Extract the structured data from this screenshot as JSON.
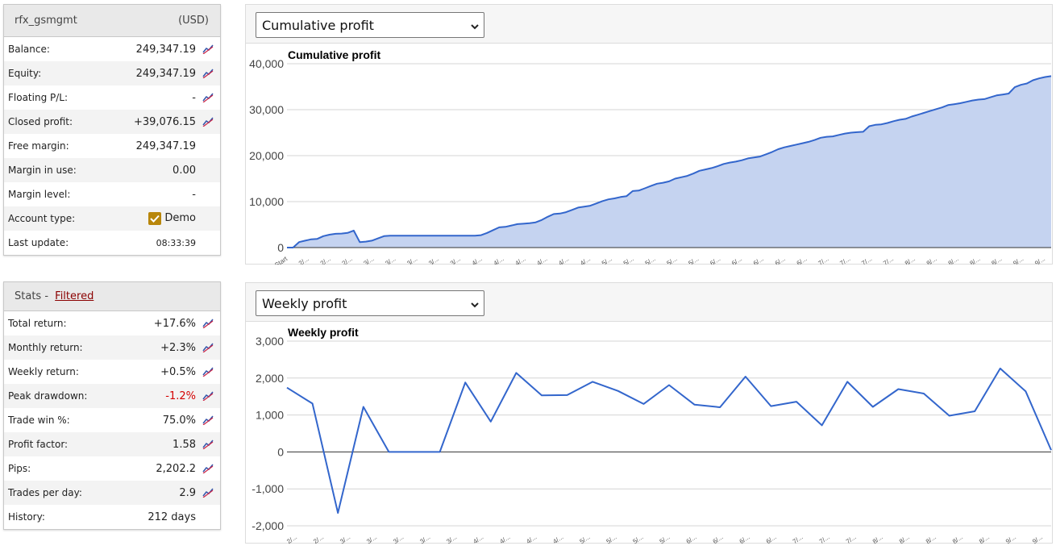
{
  "account": {
    "name": "rfx_gsmgmt",
    "currency": "(USD)",
    "rows": [
      {
        "label": "Balance:",
        "value": "249,347.19",
        "chart_icon": true
      },
      {
        "label": "Equity:",
        "value": "249,347.19",
        "chart_icon": true
      },
      {
        "label": "Floating P/L:",
        "value": "-",
        "chart_icon": true
      },
      {
        "label": "Closed profit:",
        "value": "+39,076.15",
        "chart_icon": true
      },
      {
        "label": "Free margin:",
        "value": "249,347.19",
        "chart_icon": false
      },
      {
        "label": "Margin in use:",
        "value": "0.00",
        "chart_icon": false
      },
      {
        "label": "Margin level:",
        "value": "-",
        "chart_icon": false
      },
      {
        "label": "Account type:",
        "value": "Demo",
        "checkbox": true,
        "chart_icon": false
      },
      {
        "label": "Last update:",
        "value": "08:33:39",
        "chart_icon": false
      }
    ]
  },
  "stats": {
    "title": "Stats - ",
    "filter_link": "Filtered",
    "rows": [
      {
        "label": "Total return:",
        "value": "+17.6%",
        "chart_icon": true
      },
      {
        "label": "Monthly return:",
        "value": "+2.3%",
        "chart_icon": true
      },
      {
        "label": "Weekly return:",
        "value": "+0.5%",
        "chart_icon": true
      },
      {
        "label": "Peak drawdown:",
        "value": "-1.2%",
        "negative": true,
        "chart_icon": true
      },
      {
        "label": "Trade win %:",
        "value": "75.0%",
        "chart_icon": true
      },
      {
        "label": "Profit factor:",
        "value": "1.58",
        "chart_icon": true
      },
      {
        "label": "Pips:",
        "value": "2,202.2",
        "chart_icon": true
      },
      {
        "label": "Trades per day:",
        "value": "2.9",
        "chart_icon": true
      },
      {
        "label": "History:",
        "value": "212 days",
        "chart_icon": false
      }
    ]
  },
  "colors": {
    "fill": "#c5d3f0",
    "line": "#3366cc",
    "checkbox": "#b8860b",
    "negative": "#d40000",
    "icon_stroke": "#3355aa",
    "icon_accent": "#cc2244"
  },
  "chart_data": [
    {
      "type": "area",
      "select_label": "Cumulative profit",
      "title": "Cumulative profit",
      "ylim": [
        0,
        40000
      ],
      "yticks": [
        "0",
        "10,000",
        "20,000",
        "30,000",
        "40,000"
      ],
      "xticks": [
        "Start",
        "2/...",
        "2/...",
        "2/...",
        "3/...",
        "3/...",
        "3/...",
        "3/...",
        "3/...",
        "4/...",
        "4/...",
        "4/...",
        "4/...",
        "4/...",
        "4/...",
        "5/...",
        "5/...",
        "5/...",
        "5/...",
        "5/...",
        "6/...",
        "6/...",
        "6/...",
        "6/...",
        "6/...",
        "7/...",
        "7/...",
        "7/...",
        "7/...",
        "8/...",
        "8/...",
        "8/...",
        "8/...",
        "8/...",
        "9/...",
        "9/..."
      ],
      "values": [
        0,
        0,
        1200,
        1500,
        1800,
        1900,
        2500,
        2800,
        3000,
        3050,
        3200,
        3700,
        1200,
        1300,
        1500,
        2000,
        2500,
        2600,
        2600,
        2600,
        2600,
        2600,
        2600,
        2600,
        2600,
        2600,
        2600,
        2600,
        2600,
        2600,
        2600,
        2600,
        2700,
        3200,
        3800,
        4400,
        4500,
        4800,
        5100,
        5200,
        5300,
        5500,
        6000,
        6700,
        7300,
        7400,
        7700,
        8200,
        8700,
        8900,
        9100,
        9600,
        10100,
        10500,
        10700,
        11000,
        11200,
        12300,
        12400,
        12900,
        13400,
        13900,
        14100,
        14400,
        15000,
        15300,
        15600,
        16100,
        16700,
        17000,
        17300,
        17700,
        18200,
        18500,
        18700,
        19000,
        19400,
        19600,
        19800,
        20300,
        20800,
        21400,
        21800,
        22100,
        22400,
        22700,
        23000,
        23400,
        23900,
        24100,
        24200,
        24500,
        24800,
        25000,
        25100,
        25200,
        26400,
        26700,
        26800,
        27100,
        27500,
        27800,
        28000,
        28500,
        28900,
        29300,
        29700,
        30100,
        30500,
        31000,
        31200,
        31400,
        31700,
        32000,
        32200,
        32300,
        32700,
        33100,
        33300,
        33500,
        34900,
        35400,
        35700,
        36400,
        36800,
        37100,
        37300
      ]
    },
    {
      "type": "line",
      "select_label": "Weekly profit",
      "title": "Weekly profit",
      "ylim": [
        -2000,
        3000
      ],
      "yticks": [
        "-2,000",
        "-1,000",
        "0",
        "1,000",
        "2,000",
        "3,000"
      ],
      "xticks": [
        "2/...",
        "2/...",
        "3/...",
        "3/...",
        "3/...",
        "3/...",
        "3/...",
        "4/...",
        "4/...",
        "4/...",
        "4/...",
        "5/...",
        "5/...",
        "5/...",
        "5/...",
        "6/...",
        "6/...",
        "6/...",
        "6/...",
        "7/...",
        "7/...",
        "7/...",
        "8/...",
        "8/...",
        "8/...",
        "8/...",
        "8/...",
        "9/...",
        "9/..."
      ],
      "values": [
        1740,
        1310,
        -1650,
        1220,
        0,
        0,
        0,
        1880,
        820,
        2140,
        1530,
        1540,
        1900,
        1650,
        1300,
        1810,
        1280,
        1210,
        2040,
        1240,
        1360,
        720,
        1900,
        1220,
        1700,
        1580,
        980,
        1100,
        2260,
        1640,
        50
      ]
    }
  ]
}
